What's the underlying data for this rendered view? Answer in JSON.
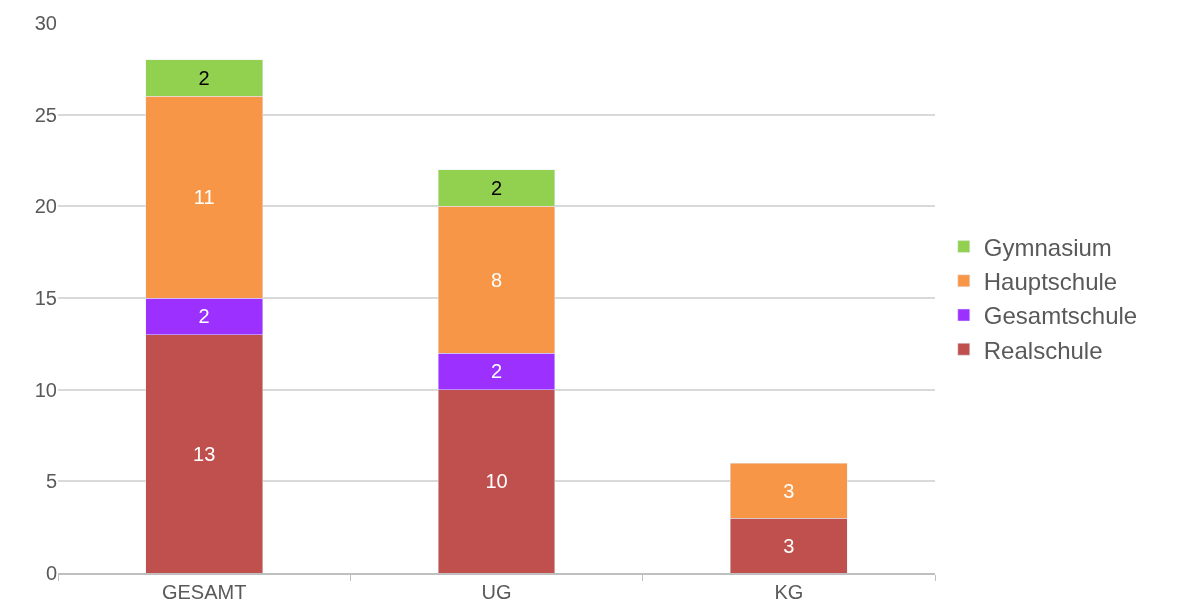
{
  "chart_data": {
    "type": "bar",
    "stacked": true,
    "categories": [
      "GESAMT",
      "UG",
      "KG"
    ],
    "series": [
      {
        "name": "Realschule",
        "color": "#c0504d",
        "values": [
          13,
          10,
          3
        ]
      },
      {
        "name": "Gesamtschule",
        "color": "#9b30ff",
        "values": [
          2,
          2,
          null
        ]
      },
      {
        "name": "Hauptschule",
        "color": "#f79646",
        "values": [
          11,
          8,
          3
        ]
      },
      {
        "name": "Gymnasium",
        "color": "#92d050",
        "values": [
          2,
          2,
          null
        ]
      }
    ],
    "ylim": [
      0,
      30
    ],
    "yticks": [
      0,
      5,
      10,
      15,
      20,
      25,
      30
    ],
    "grid": "y",
    "legend": "right",
    "data_labels": true
  }
}
